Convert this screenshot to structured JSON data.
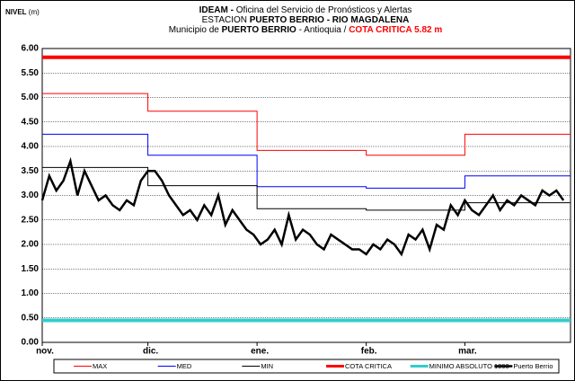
{
  "chart_data": {
    "type": "line",
    "title": [
      [
        {
          "text": "IDEAM -",
          "bold": true
        },
        {
          "text": " Oficina del Servicio de Pronósticos y Alertas",
          "bold": false
        }
      ],
      [
        {
          "text": "ESTACION ",
          "bold": false
        },
        {
          "text": "PUERTO BERRIO  - RIO MAGDALENA",
          "bold": true
        }
      ],
      [
        {
          "text": "Municipio de ",
          "bold": false
        },
        {
          "text": "PUERTO BERRIO",
          "bold": true
        },
        {
          "text": " - Antioquia  /  ",
          "bold": false
        },
        {
          "text": "COTA CRITICA 5.82 m",
          "bold": true,
          "color": "#ff0000"
        }
      ]
    ],
    "ylabel": [
      "NIVEL",
      " (m)"
    ],
    "xlim": [
      0,
      150
    ],
    "xticks": [
      {
        "value": 0,
        "label": "nov."
      },
      {
        "value": 30,
        "label": "dic."
      },
      {
        "value": 61,
        "label": "ene."
      },
      {
        "value": 92,
        "label": "feb."
      },
      {
        "value": 120,
        "label": "mar."
      }
    ],
    "ylim": [
      0,
      6
    ],
    "yticks": [
      {
        "value": 0,
        "label": "0.00"
      },
      {
        "value": 0.5,
        "label": "0.50"
      },
      {
        "value": 1,
        "label": "1.00"
      },
      {
        "value": 1.5,
        "label": "1.50"
      },
      {
        "value": 2,
        "label": "2.00"
      },
      {
        "value": 2.5,
        "label": "2.50"
      },
      {
        "value": 3,
        "label": "3.00"
      },
      {
        "value": 3.5,
        "label": "3.50"
      },
      {
        "value": 4,
        "label": "4.00"
      },
      {
        "value": 4.5,
        "label": "4.50"
      },
      {
        "value": 5,
        "label": "5.00"
      },
      {
        "value": 5.5,
        "label": "5.50"
      },
      {
        "value": 6,
        "label": "6.00"
      }
    ],
    "grid": true,
    "legend": "bottom",
    "series": [
      {
        "name": "MAX",
        "color": "#ff0000",
        "width": 1,
        "x": [
          0,
          30,
          30,
          61,
          61,
          92,
          92,
          120,
          120,
          150
        ],
        "values": [
          5.08,
          5.08,
          4.72,
          4.72,
          3.92,
          3.92,
          3.82,
          3.82,
          4.25,
          4.25
        ]
      },
      {
        "name": "MED",
        "color": "#0000ff",
        "width": 1,
        "x": [
          0,
          30,
          30,
          61,
          61,
          92,
          92,
          120,
          120,
          150
        ],
        "values": [
          4.25,
          4.25,
          3.82,
          3.82,
          3.18,
          3.18,
          3.15,
          3.15,
          3.4,
          3.4
        ]
      },
      {
        "name": "MIN",
        "color": "#000000",
        "width": 1,
        "x": [
          0,
          30,
          30,
          61,
          61,
          92,
          92,
          120,
          120,
          150
        ],
        "values": [
          3.57,
          3.57,
          3.2,
          3.2,
          2.73,
          2.73,
          2.7,
          2.7,
          2.85,
          2.85
        ]
      },
      {
        "name": "COTA CRITICA",
        "color": "#ff0000",
        "width": 4,
        "x": [
          0,
          150
        ],
        "values": [
          5.82,
          5.82
        ]
      },
      {
        "name": "MINIMO ABSOLUTO 1993",
        "color": "#33cccc",
        "width": 4,
        "x": [
          0,
          150
        ],
        "values": [
          0.45,
          0.45
        ]
      },
      {
        "name": "Puerto Berrio",
        "color": "#000000",
        "width": 2.5,
        "x": [
          0,
          2,
          4,
          6,
          8,
          10,
          12,
          14,
          16,
          18,
          20,
          22,
          24,
          26,
          28,
          30,
          32,
          34,
          36,
          38,
          40,
          42,
          44,
          46,
          48,
          50,
          52,
          54,
          56,
          58,
          60,
          62,
          64,
          66,
          68,
          70,
          72,
          74,
          76,
          78,
          80,
          82,
          84,
          86,
          88,
          90,
          92,
          94,
          96,
          98,
          100,
          102,
          104,
          106,
          108,
          110,
          112,
          114,
          116,
          118,
          120,
          122,
          124,
          126,
          128,
          130,
          132,
          134,
          136,
          138,
          140,
          142,
          144,
          146,
          148
        ],
        "values": [
          2.9,
          3.4,
          3.1,
          3.3,
          3.7,
          3.0,
          3.5,
          3.2,
          2.9,
          3.0,
          2.8,
          2.7,
          2.9,
          2.8,
          3.3,
          3.5,
          3.5,
          3.3,
          3.0,
          2.8,
          2.6,
          2.7,
          2.5,
          2.8,
          2.6,
          3.0,
          2.4,
          2.7,
          2.5,
          2.3,
          2.2,
          2.0,
          2.1,
          2.3,
          2.0,
          2.6,
          2.1,
          2.3,
          2.2,
          2.0,
          1.9,
          2.2,
          2.1,
          2.0,
          1.9,
          1.9,
          1.8,
          2.0,
          1.9,
          2.1,
          2.0,
          1.8,
          2.2,
          2.1,
          2.3,
          1.9,
          2.4,
          2.3,
          2.8,
          2.6,
          2.9,
          2.7,
          2.6,
          2.8,
          3.0,
          2.7,
          2.9,
          2.8,
          3.0,
          2.9,
          2.8,
          3.1,
          3.0,
          3.1,
          2.9
        ]
      }
    ]
  }
}
